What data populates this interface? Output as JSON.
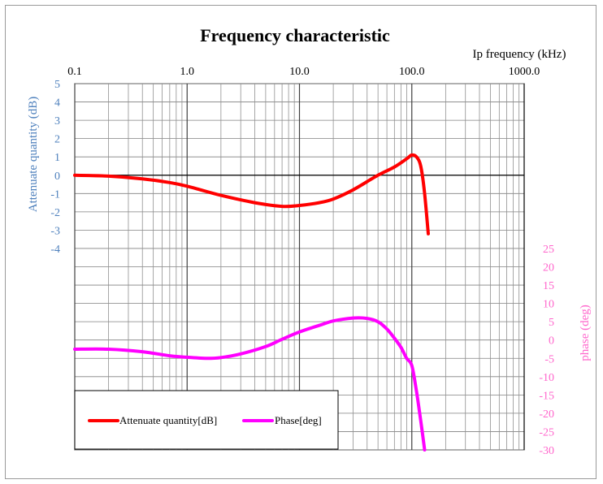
{
  "chart_data": {
    "type": "line",
    "title": "Frequency characteristic",
    "xlabel": "Ip frequency (kHz)",
    "x_scale": "log",
    "xlim": [
      0.1,
      1000.0
    ],
    "xticks": [
      "0.1",
      "1.0",
      "10.0",
      "100.0",
      "1000.0"
    ],
    "ylabel_left": "Attenuate quantity (dB)",
    "ylim_left": [
      -4,
      5
    ],
    "yticks_left": [
      "5",
      "4",
      "3",
      "2",
      "1",
      "0",
      "-1",
      "-2",
      "-3",
      "-4"
    ],
    "ylabel_right": "phase (deg)",
    "ylim_right": [
      -30,
      25
    ],
    "yticks_right": [
      "25",
      "20",
      "15",
      "10",
      "5",
      "0",
      "-5",
      "-10",
      "-15",
      "-20",
      "-25",
      "-30"
    ],
    "grid": true,
    "legend_position": "bottom-left",
    "colors": {
      "attenuation": "#ff0000",
      "phase": "#ff00ff",
      "left_axis": "#4f81bd",
      "right_axis": "#ff66cc"
    },
    "series": [
      {
        "name": "Attenuate quantity[dB]",
        "axis": "left",
        "x": [
          0.1,
          0.2,
          0.4,
          0.7,
          1.0,
          2.0,
          4.0,
          7.0,
          10.0,
          15.0,
          20.0,
          30.0,
          50.0,
          70.0,
          90.0,
          100.0,
          110.0,
          120.0,
          130.0,
          140.0
        ],
        "values": [
          0.0,
          -0.05,
          -0.2,
          -0.4,
          -0.6,
          -1.1,
          -1.5,
          -1.7,
          -1.65,
          -1.5,
          -1.3,
          -0.8,
          0.0,
          0.45,
          0.9,
          1.1,
          1.0,
          0.5,
          -1.0,
          -3.2
        ]
      },
      {
        "name": "Phase[deg]",
        "axis": "right",
        "x": [
          0.1,
          0.2,
          0.4,
          0.7,
          1.0,
          1.5,
          2.0,
          3.0,
          5.0,
          7.0,
          10.0,
          15.0,
          20.0,
          30.0,
          40.0,
          50.0,
          60.0,
          70.0,
          80.0,
          90.0,
          100.0,
          110.0,
          120.0,
          130.0
        ],
        "values": [
          -2.5,
          -2.5,
          -3.2,
          -4.3,
          -4.7,
          -5.0,
          -4.8,
          -3.8,
          -1.8,
          0.2,
          2.2,
          4.0,
          5.2,
          6.0,
          5.9,
          5.0,
          3.0,
          0.5,
          -2.0,
          -5.0,
          -7.0,
          -14.0,
          -22.0,
          -30.0
        ]
      }
    ]
  }
}
